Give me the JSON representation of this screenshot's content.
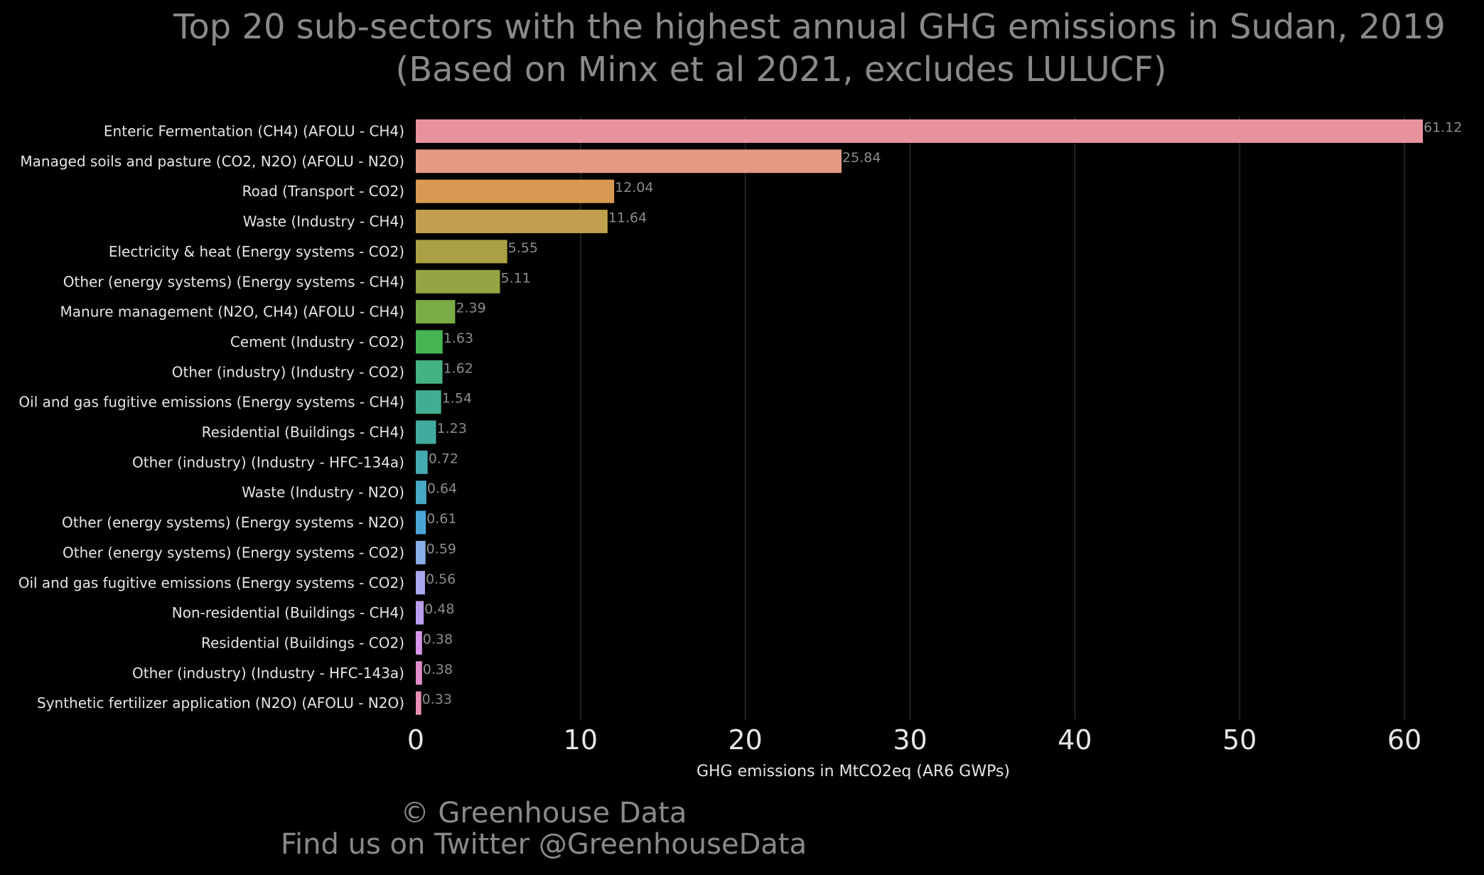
{
  "title": {
    "line1": "Top 20 sub-sectors with the highest annual GHG emissions in Sudan, 2019",
    "line2": "(Based on Minx et al 2021, excludes LULUCF)"
  },
  "footer": {
    "line1": "© Greenhouse Data",
    "line2": "Find us on Twitter @GreenhouseData"
  },
  "chart_data": {
    "type": "bar",
    "orientation": "horizontal",
    "title": "Top 20 sub-sectors with the highest annual GHG emissions in Sudan, 2019 (Based on Minx et al 2021, excludes LULUCF)",
    "xlabel": "GHG emissions in MtCO2eq (AR6 GWPs)",
    "ylabel": "",
    "xlim": [
      0,
      62.5
    ],
    "xticks": [
      0,
      10,
      20,
      30,
      40,
      50,
      60
    ],
    "grid": "vertical",
    "categories": [
      "Enteric Fermentation (CH4) (AFOLU - CH4)",
      "Managed soils and pasture (CO2, N2O) (AFOLU - N2O)",
      "Road (Transport - CO2)",
      "Waste (Industry - CH4)",
      "Electricity & heat (Energy systems - CO2)",
      "Other (energy systems) (Energy systems - CH4)",
      "Manure management (N2O, CH4) (AFOLU - CH4)",
      "Cement (Industry - CO2)",
      "Other (industry) (Industry - CO2)",
      "Oil and gas fugitive emissions (Energy systems - CH4)",
      "Residential (Buildings - CH4)",
      "Other (industry) (Industry - HFC-134a)",
      "Waste (Industry - N2O)",
      "Other (energy systems) (Energy systems - N2O)",
      "Other (energy systems) (Energy systems - CO2)",
      "Oil and gas fugitive emissions (Energy systems - CO2)",
      "Non-residential (Buildings - CH4)",
      "Residential (Buildings - CO2)",
      "Other (industry) (Industry - HFC-143a)",
      "Synthetic fertilizer application (N2O) (AFOLU - N2O)"
    ],
    "values": [
      61.12,
      25.84,
      12.04,
      11.64,
      5.55,
      5.11,
      2.39,
      1.63,
      1.62,
      1.54,
      1.23,
      0.72,
      0.64,
      0.61,
      0.59,
      0.56,
      0.48,
      0.38,
      0.38,
      0.33
    ],
    "value_labels": [
      "61.12",
      "25.84",
      "12.04",
      "11.64",
      "5.55",
      "5.11",
      "2.39",
      "1.63",
      "1.62",
      "1.54",
      "1.23",
      "0.72",
      "0.64",
      "0.61",
      "0.59",
      "0.56",
      "0.48",
      "0.38",
      "0.38",
      "0.33"
    ],
    "colors": [
      "#e8929e",
      "#e69a86",
      "#d89a52",
      "#c09f4e",
      "#a9a043",
      "#97a443",
      "#7aab44",
      "#45b453",
      "#45b285",
      "#43ad92",
      "#42aa9e",
      "#45aab0",
      "#47a9c3",
      "#4ba6d6",
      "#8aaee8",
      "#a9a7ee",
      "#b99eee",
      "#d796e8",
      "#e08ec8",
      "#e88eb4"
    ]
  }
}
